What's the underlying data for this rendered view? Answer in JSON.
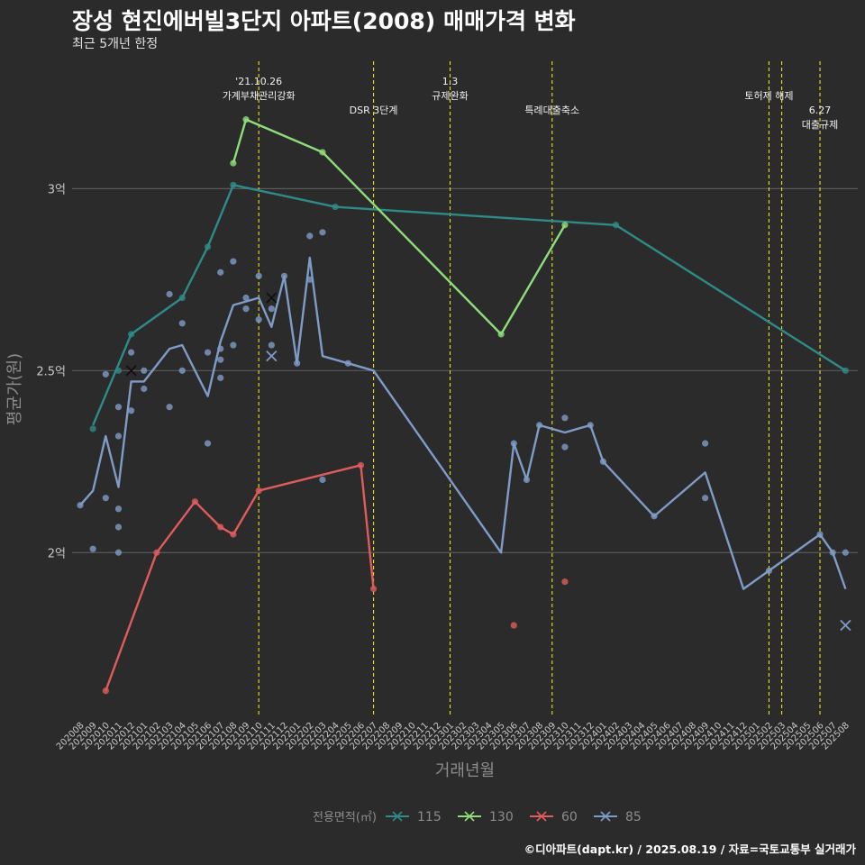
{
  "title": "장성 현진에버빌3단지 아파트(2008) 매매가격 변화",
  "subtitle": "최근 5개년 한정",
  "caption": "©디아파트(dapt.kr) / 2025.08.19 / 자료=국토교통부 실거래가",
  "colors": {
    "background": "#2b2b2c",
    "grid": "#5a5a5a",
    "vline": "#e8e21a",
    "axis_text": "#c8c8c8",
    "axis_title": "#8c8c8c"
  },
  "chart_data": {
    "type": "line",
    "xlabel": "거래년월",
    "ylabel": "평균가(원)",
    "ylim": [
      1.55,
      3.35
    ],
    "y_ticks": [
      {
        "value": 2.0,
        "label": "2억"
      },
      {
        "value": 2.5,
        "label": "2.5억"
      },
      {
        "value": 3.0,
        "label": "3억"
      }
    ],
    "x_categories": [
      "202008",
      "202009",
      "202010",
      "202011",
      "202012",
      "202101",
      "202102",
      "202103",
      "202104",
      "202105",
      "202106",
      "202107",
      "202108",
      "202109",
      "202110",
      "202111",
      "202112",
      "202201",
      "202202",
      "202203",
      "202204",
      "202205",
      "202206",
      "202207",
      "202208",
      "202209",
      "202210",
      "202211",
      "202212",
      "202301",
      "202302",
      "202303",
      "202304",
      "202305",
      "202306",
      "202307",
      "202308",
      "202309",
      "202310",
      "202311",
      "202312",
      "202401",
      "202402",
      "202403",
      "202404",
      "202405",
      "202406",
      "202407",
      "202408",
      "202409",
      "202410",
      "202411",
      "202412",
      "202501",
      "202502",
      "202503",
      "202504",
      "202505",
      "202506",
      "202507",
      "202508"
    ],
    "legend_title": "전용면적(㎡)",
    "legend_position": "bottom",
    "series": [
      {
        "name": "115",
        "color": "#2e8b88",
        "points": [
          [
            "202009",
            2.35
          ],
          [
            "202012",
            2.6
          ],
          [
            "202104",
            2.7
          ],
          [
            "202106",
            2.84
          ],
          [
            "202108",
            3.01
          ],
          [
            "202204",
            2.95
          ],
          [
            "202402",
            2.9
          ],
          [
            "202508",
            2.5
          ]
        ],
        "dots": [
          [
            "202009",
            2.34
          ],
          [
            "202011",
            2.5
          ],
          [
            "202012",
            2.6
          ],
          [
            "202104",
            2.7
          ],
          [
            "202106",
            2.84
          ],
          [
            "202108",
            3.01
          ],
          [
            "202204",
            2.95
          ],
          [
            "202402",
            2.9
          ],
          [
            "202508",
            2.5
          ]
        ],
        "crosses": []
      },
      {
        "name": "130",
        "color": "#8fdc7a",
        "points": [
          [
            "202108",
            3.07
          ],
          [
            "202109",
            3.19
          ],
          [
            "202203",
            3.1
          ],
          [
            "202305",
            2.6
          ],
          [
            "202310",
            2.9
          ]
        ],
        "dots": [
          [
            "202108",
            3.07
          ],
          [
            "202109",
            3.19
          ],
          [
            "202203",
            3.1
          ],
          [
            "202305",
            2.6
          ],
          [
            "202310",
            2.9
          ]
        ],
        "crosses": []
      },
      {
        "name": "60",
        "color": "#e05c5c",
        "points": [
          [
            "202010",
            1.62
          ],
          [
            "202102",
            2.0
          ],
          [
            "202105",
            2.14
          ],
          [
            "202107",
            2.07
          ],
          [
            "202108",
            2.05
          ],
          [
            "202110",
            2.17
          ],
          [
            "202206",
            2.24
          ],
          [
            "202207",
            1.9
          ]
        ],
        "dots": [
          [
            "202010",
            1.62
          ],
          [
            "202102",
            2.0
          ],
          [
            "202105",
            2.14
          ],
          [
            "202107",
            2.07
          ],
          [
            "202108",
            2.05
          ],
          [
            "202110",
            2.17
          ],
          [
            "202206",
            2.24
          ],
          [
            "202207",
            1.9
          ],
          [
            "202306",
            1.8
          ],
          [
            "202310",
            1.92
          ]
        ],
        "crosses": []
      },
      {
        "name": "85",
        "color": "#7f9cc7",
        "points": [
          [
            "202008",
            2.13
          ],
          [
            "202009",
            2.17
          ],
          [
            "202010",
            2.32
          ],
          [
            "202011",
            2.18
          ],
          [
            "202012",
            2.47
          ],
          [
            "202101",
            2.47
          ],
          [
            "202103",
            2.56
          ],
          [
            "202104",
            2.57
          ],
          [
            "202106",
            2.43
          ],
          [
            "202107",
            2.58
          ],
          [
            "202108",
            2.68
          ],
          [
            "202109",
            2.69
          ],
          [
            "202110",
            2.7
          ],
          [
            "202111",
            2.62
          ],
          [
            "202112",
            2.76
          ],
          [
            "202201",
            2.52
          ],
          [
            "202202",
            2.81
          ],
          [
            "202203",
            2.54
          ],
          [
            "202205",
            2.52
          ],
          [
            "202207",
            2.5
          ],
          [
            "202305",
            2.0
          ],
          [
            "202306",
            2.3
          ],
          [
            "202307",
            2.2
          ],
          [
            "202308",
            2.35
          ],
          [
            "202310",
            2.33
          ],
          [
            "202312",
            2.35
          ],
          [
            "202401",
            2.25
          ],
          [
            "202405",
            2.1
          ],
          [
            "202409",
            2.22
          ],
          [
            "202412",
            1.9
          ],
          [
            "202502",
            1.95
          ],
          [
            "202506",
            2.05
          ],
          [
            "202507",
            2.0
          ],
          [
            "202508",
            1.9
          ]
        ],
        "dots": [
          [
            "202008",
            2.13
          ],
          [
            "202009",
            2.01
          ],
          [
            "202010",
            2.49
          ],
          [
            "202010",
            2.15
          ],
          [
            "202011",
            2.4
          ],
          [
            "202011",
            2.32
          ],
          [
            "202011",
            2.12
          ],
          [
            "202011",
            2.07
          ],
          [
            "202011",
            2.0
          ],
          [
            "202012",
            2.55
          ],
          [
            "202012",
            2.39
          ],
          [
            "202101",
            2.5
          ],
          [
            "202101",
            2.45
          ],
          [
            "202103",
            2.71
          ],
          [
            "202103",
            2.4
          ],
          [
            "202104",
            2.63
          ],
          [
            "202104",
            2.5
          ],
          [
            "202106",
            2.55
          ],
          [
            "202106",
            2.3
          ],
          [
            "202107",
            2.77
          ],
          [
            "202107",
            2.56
          ],
          [
            "202107",
            2.53
          ],
          [
            "202107",
            2.48
          ],
          [
            "202108",
            2.8
          ],
          [
            "202108",
            2.57
          ],
          [
            "202109",
            2.7
          ],
          [
            "202109",
            2.67
          ],
          [
            "202110",
            2.76
          ],
          [
            "202110",
            2.64
          ],
          [
            "202111",
            2.67
          ],
          [
            "202111",
            2.57
          ],
          [
            "202112",
            2.76
          ],
          [
            "202201",
            2.52
          ],
          [
            "202202",
            2.87
          ],
          [
            "202202",
            2.75
          ],
          [
            "202203",
            2.88
          ],
          [
            "202203",
            2.2
          ],
          [
            "202205",
            2.52
          ],
          [
            "202306",
            2.3
          ],
          [
            "202307",
            2.2
          ],
          [
            "202308",
            2.35
          ],
          [
            "202310",
            2.37
          ],
          [
            "202310",
            2.29
          ],
          [
            "202312",
            2.35
          ],
          [
            "202401",
            2.25
          ],
          [
            "202405",
            2.1
          ],
          [
            "202409",
            2.3
          ],
          [
            "202409",
            2.15
          ],
          [
            "202502",
            1.95
          ],
          [
            "202506",
            2.05
          ],
          [
            "202507",
            2.0
          ],
          [
            "202508",
            2.0
          ]
        ],
        "crosses": [
          [
            "202111",
            2.54
          ],
          [
            "202508",
            1.8
          ]
        ]
      },
      {
        "name": "",
        "color": "#111111",
        "points": [],
        "dots": [],
        "crosses": [
          [
            "202012",
            2.5
          ],
          [
            "202111",
            2.7
          ]
        ]
      }
    ],
    "annotations": [
      {
        "x": "202110",
        "lines": [
          "'21.10.26",
          "가계부채관리강화"
        ],
        "row": 0
      },
      {
        "x": "202207",
        "lines": [
          "DSR 3단계"
        ],
        "row": 2
      },
      {
        "x": "202301",
        "lines": [
          "1.3",
          "규제완화"
        ],
        "row": 0
      },
      {
        "x": "202309",
        "lines": [
          "특례대출축소"
        ],
        "row": 2
      },
      {
        "x": "202502",
        "lines": [
          "토허제 해제"
        ],
        "row": 1
      },
      {
        "x": "202503",
        "lines": [],
        "row": 1
      },
      {
        "x": "202506",
        "lines": [
          "6.27",
          "대출규제"
        ],
        "row": 2
      }
    ]
  }
}
